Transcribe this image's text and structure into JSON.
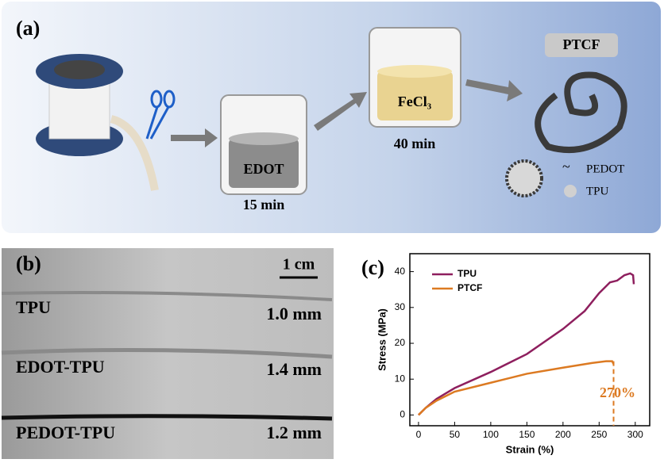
{
  "panel_a": {
    "label": "(a)",
    "edot": "EDOT",
    "edot_time": "15 min",
    "fecl3": "FeCl₃",
    "fecl3_time": "40 min",
    "ptcf": "PTCF",
    "legend_pedot": "PEDOT",
    "legend_tpu": "TPU"
  },
  "panel_b": {
    "label": "(b)",
    "scale": "1 cm",
    "rows": [
      {
        "name": "TPU",
        "size": "1.0 mm"
      },
      {
        "name": "EDOT-TPU",
        "size": "1.4 mm"
      },
      {
        "name": "PEDOT-TPU",
        "size": "1.2 mm"
      }
    ]
  },
  "panel_c_label": "(c)",
  "chart_data": {
    "type": "line",
    "x_label": "Strain (%)",
    "y_label": "Stress (MPa)",
    "xlim": [
      -12,
      320
    ],
    "ylim": [
      -3,
      45
    ],
    "xticks": [
      0,
      50,
      100,
      150,
      200,
      250,
      300
    ],
    "yticks": [
      0,
      10,
      20,
      30,
      40
    ],
    "legend": "upper left",
    "series": [
      {
        "name": "TPU",
        "color": "#8e1f5e",
        "x": [
          0,
          10,
          25,
          50,
          100,
          150,
          200,
          230,
          250,
          265,
          275,
          285,
          293,
          297,
          298
        ],
        "values": [
          0,
          2,
          4.5,
          7.5,
          12,
          17,
          24,
          29,
          34,
          37,
          37.5,
          39,
          39.5,
          39,
          36.5
        ]
      },
      {
        "name": "PTCF",
        "color": "#dc7a22",
        "x": [
          0,
          10,
          25,
          50,
          100,
          150,
          200,
          240,
          260,
          268,
          270
        ],
        "values": [
          0,
          2,
          4,
          6.5,
          9,
          11.5,
          13.2,
          14.5,
          15,
          15,
          14.2
        ]
      }
    ],
    "annotation": {
      "text": "270%",
      "x": 270,
      "y": 15
    }
  }
}
